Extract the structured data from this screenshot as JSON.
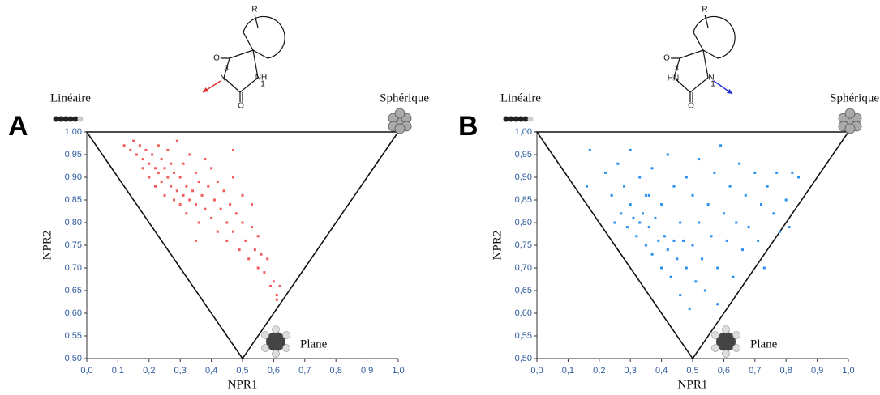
{
  "chart_data": [
    {
      "type": "scatter",
      "panel_label": "A",
      "xlabel": "NPR1",
      "ylabel": "NPR2",
      "corner_labels": {
        "left": "Linéaire",
        "right": "Sphérique",
        "bottom": "Plane"
      },
      "structure_labels": [
        "R",
        "O",
        "3",
        "N",
        "NH",
        "1",
        "O"
      ],
      "xlim": [
        0,
        1
      ],
      "ylim": [
        0.5,
        1
      ],
      "xticks": [
        {
          "value": 0,
          "label": "0,0"
        },
        {
          "value": 0.1,
          "label": "0,1"
        },
        {
          "value": 0.2,
          "label": "0,2"
        },
        {
          "value": 0.3,
          "label": "0,3"
        },
        {
          "value": 0.4,
          "label": "0,4"
        },
        {
          "value": 0.5,
          "label": "0,5"
        },
        {
          "value": 0.6,
          "label": "0,6"
        },
        {
          "value": 0.7,
          "label": "0,7"
        },
        {
          "value": 0.8,
          "label": "0,8"
        },
        {
          "value": 0.9,
          "label": "0,9"
        },
        {
          "value": 1,
          "label": "1,0"
        }
      ],
      "yticks": [
        {
          "value": 0.5,
          "label": "0,50"
        },
        {
          "value": 0.55,
          "label": "0,55"
        },
        {
          "value": 0.6,
          "label": "0,60"
        },
        {
          "value": 0.65,
          "label": "0,65"
        },
        {
          "value": 0.7,
          "label": "0,70"
        },
        {
          "value": 0.75,
          "label": "0,75"
        },
        {
          "value": 0.8,
          "label": "0,80"
        },
        {
          "value": 0.85,
          "label": "0,85"
        },
        {
          "value": 0.9,
          "label": "0,90"
        },
        {
          "value": 0.95,
          "label": "0,95"
        },
        {
          "value": 1,
          "label": "1,00"
        }
      ],
      "color": "#f25c5c",
      "x": [
        0.12,
        0.14,
        0.15,
        0.16,
        0.17,
        0.18,
        0.18,
        0.19,
        0.2,
        0.2,
        0.21,
        0.22,
        0.22,
        0.23,
        0.23,
        0.24,
        0.24,
        0.25,
        0.25,
        0.26,
        0.26,
        0.27,
        0.27,
        0.28,
        0.28,
        0.29,
        0.29,
        0.3,
        0.3,
        0.31,
        0.31,
        0.32,
        0.32,
        0.33,
        0.33,
        0.34,
        0.35,
        0.35,
        0.36,
        0.36,
        0.37,
        0.38,
        0.38,
        0.39,
        0.4,
        0.4,
        0.41,
        0.42,
        0.42,
        0.43,
        0.44,
        0.45,
        0.45,
        0.46,
        0.47,
        0.47,
        0.48,
        0.49,
        0.5,
        0.5,
        0.51,
        0.52,
        0.53,
        0.54,
        0.55,
        0.55,
        0.56,
        0.57,
        0.58,
        0.59,
        0.6,
        0.61,
        0.62,
        0.61,
        0.53,
        0.47,
        0.35
      ],
      "values": [
        0.97,
        0.96,
        0.98,
        0.95,
        0.97,
        0.94,
        0.92,
        0.96,
        0.93,
        0.9,
        0.95,
        0.92,
        0.88,
        0.97,
        0.91,
        0.89,
        0.94,
        0.92,
        0.86,
        0.9,
        0.96,
        0.88,
        0.93,
        0.85,
        0.91,
        0.98,
        0.87,
        0.9,
        0.84,
        0.93,
        0.86,
        0.88,
        0.82,
        0.95,
        0.85,
        0.87,
        0.84,
        0.91,
        0.8,
        0.89,
        0.86,
        0.94,
        0.83,
        0.88,
        0.81,
        0.92,
        0.85,
        0.78,
        0.89,
        0.83,
        0.87,
        0.8,
        0.76,
        0.84,
        0.9,
        0.78,
        0.82,
        0.74,
        0.8,
        0.86,
        0.76,
        0.72,
        0.79,
        0.74,
        0.7,
        0.77,
        0.73,
        0.69,
        0.72,
        0.66,
        0.67,
        0.64,
        0.66,
        0.63,
        0.84,
        0.96,
        0.76
      ]
    },
    {
      "type": "scatter",
      "panel_label": "B",
      "xlabel": "NPR1",
      "ylabel": "NPR2",
      "corner_labels": {
        "left": "Linéaire",
        "right": "Sphérique",
        "bottom": "Plane"
      },
      "structure_labels": [
        "R",
        "O",
        "3",
        "HN",
        "N",
        "1",
        "O"
      ],
      "xlim": [
        0,
        1
      ],
      "ylim": [
        0.5,
        1
      ],
      "xticks": [
        {
          "value": 0,
          "label": "0,0"
        },
        {
          "value": 0.1,
          "label": "0,1"
        },
        {
          "value": 0.2,
          "label": "0,2"
        },
        {
          "value": 0.3,
          "label": "0,3"
        },
        {
          "value": 0.4,
          "label": "0,4"
        },
        {
          "value": 0.5,
          "label": "0,5"
        },
        {
          "value": 0.6,
          "label": "0,6"
        },
        {
          "value": 0.7,
          "label": "0,7"
        },
        {
          "value": 0.8,
          "label": "0,8"
        },
        {
          "value": 0.9,
          "label": "0,9"
        },
        {
          "value": 1,
          "label": "1,0"
        }
      ],
      "yticks": [
        {
          "value": 0.5,
          "label": "0,50"
        },
        {
          "value": 0.55,
          "label": "0,55"
        },
        {
          "value": 0.6,
          "label": "0,60"
        },
        {
          "value": 0.65,
          "label": "0,65"
        },
        {
          "value": 0.7,
          "label": "0,70"
        },
        {
          "value": 0.75,
          "label": "0,75"
        },
        {
          "value": 0.8,
          "label": "0,80"
        },
        {
          "value": 0.85,
          "label": "0,85"
        },
        {
          "value": 0.9,
          "label": "0,90"
        },
        {
          "value": 0.95,
          "label": "0,95"
        },
        {
          "value": 1,
          "label": "1,00"
        }
      ],
      "color": "#2b8ff0",
      "x": [
        0.17,
        0.16,
        0.22,
        0.24,
        0.26,
        0.27,
        0.28,
        0.29,
        0.3,
        0.3,
        0.31,
        0.32,
        0.33,
        0.33,
        0.34,
        0.35,
        0.35,
        0.36,
        0.37,
        0.37,
        0.38,
        0.39,
        0.4,
        0.4,
        0.41,
        0.42,
        0.42,
        0.43,
        0.44,
        0.44,
        0.45,
        0.46,
        0.46,
        0.47,
        0.48,
        0.48,
        0.49,
        0.5,
        0.5,
        0.51,
        0.52,
        0.52,
        0.53,
        0.54,
        0.55,
        0.56,
        0.57,
        0.58,
        0.59,
        0.6,
        0.61,
        0.62,
        0.63,
        0.64,
        0.65,
        0.66,
        0.67,
        0.68,
        0.7,
        0.71,
        0.72,
        0.73,
        0.74,
        0.76,
        0.77,
        0.78,
        0.8,
        0.82,
        0.84,
        0.81,
        0.58,
        0.36,
        0.25
      ],
      "values": [
        0.96,
        0.88,
        0.91,
        0.86,
        0.93,
        0.82,
        0.88,
        0.79,
        0.84,
        0.96,
        0.81,
        0.77,
        0.8,
        0.9,
        0.82,
        0.75,
        0.86,
        0.79,
        0.73,
        0.92,
        0.81,
        0.76,
        0.7,
        0.84,
        0.77,
        0.74,
        0.95,
        0.68,
        0.76,
        0.88,
        0.72,
        0.64,
        0.8,
        0.76,
        0.7,
        0.9,
        0.61,
        0.75,
        0.86,
        0.67,
        0.8,
        0.94,
        0.72,
        0.65,
        0.84,
        0.77,
        0.91,
        0.7,
        0.97,
        0.82,
        0.76,
        0.88,
        0.68,
        0.8,
        0.93,
        0.74,
        0.86,
        0.79,
        0.91,
        0.76,
        0.84,
        0.7,
        0.88,
        0.82,
        0.91,
        0.78,
        0.85,
        0.91,
        0.9,
        0.79,
        0.62,
        0.86,
        0.8
      ]
    }
  ]
}
